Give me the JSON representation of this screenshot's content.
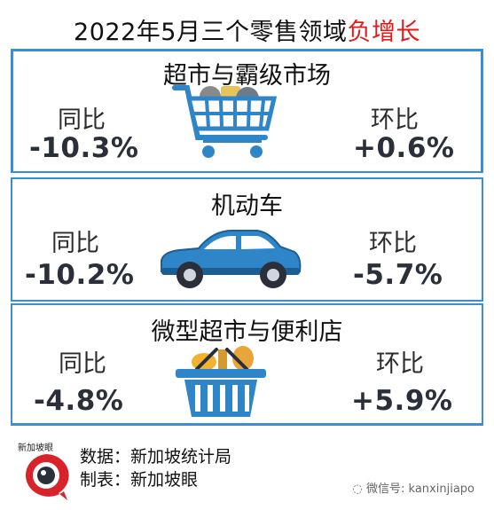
{
  "title": {
    "main": "2022年5月三个零售领域",
    "highlight": "负增长"
  },
  "panels": [
    {
      "title": "超市与霸级市场",
      "left_label": "同比",
      "left_value": "-10.3%",
      "right_label": "环比",
      "right_value": "+0.6%",
      "icon": "shopping-cart-icon"
    },
    {
      "title": "机动车",
      "left_label": "同比",
      "left_value": "-10.2%",
      "right_label": "环比",
      "right_value": "-5.7%",
      "icon": "car-icon"
    },
    {
      "title": "微型超市与便利店",
      "left_label": "同比",
      "left_value": "-4.8%",
      "right_label": "环比",
      "right_value": "+5.9%",
      "icon": "shopping-basket-icon"
    }
  ],
  "footer": {
    "logo_caption": "新加坡眼",
    "source": "数据：新加坡统计局",
    "made_by": "制表：新加坡眼",
    "watermark": "微信号: kanxinjiapo"
  },
  "colors": {
    "accent": "#3a8fd0",
    "highlight": "#e21b1b",
    "car_body": "#2e86c8",
    "logo_red": "#d8232a"
  }
}
